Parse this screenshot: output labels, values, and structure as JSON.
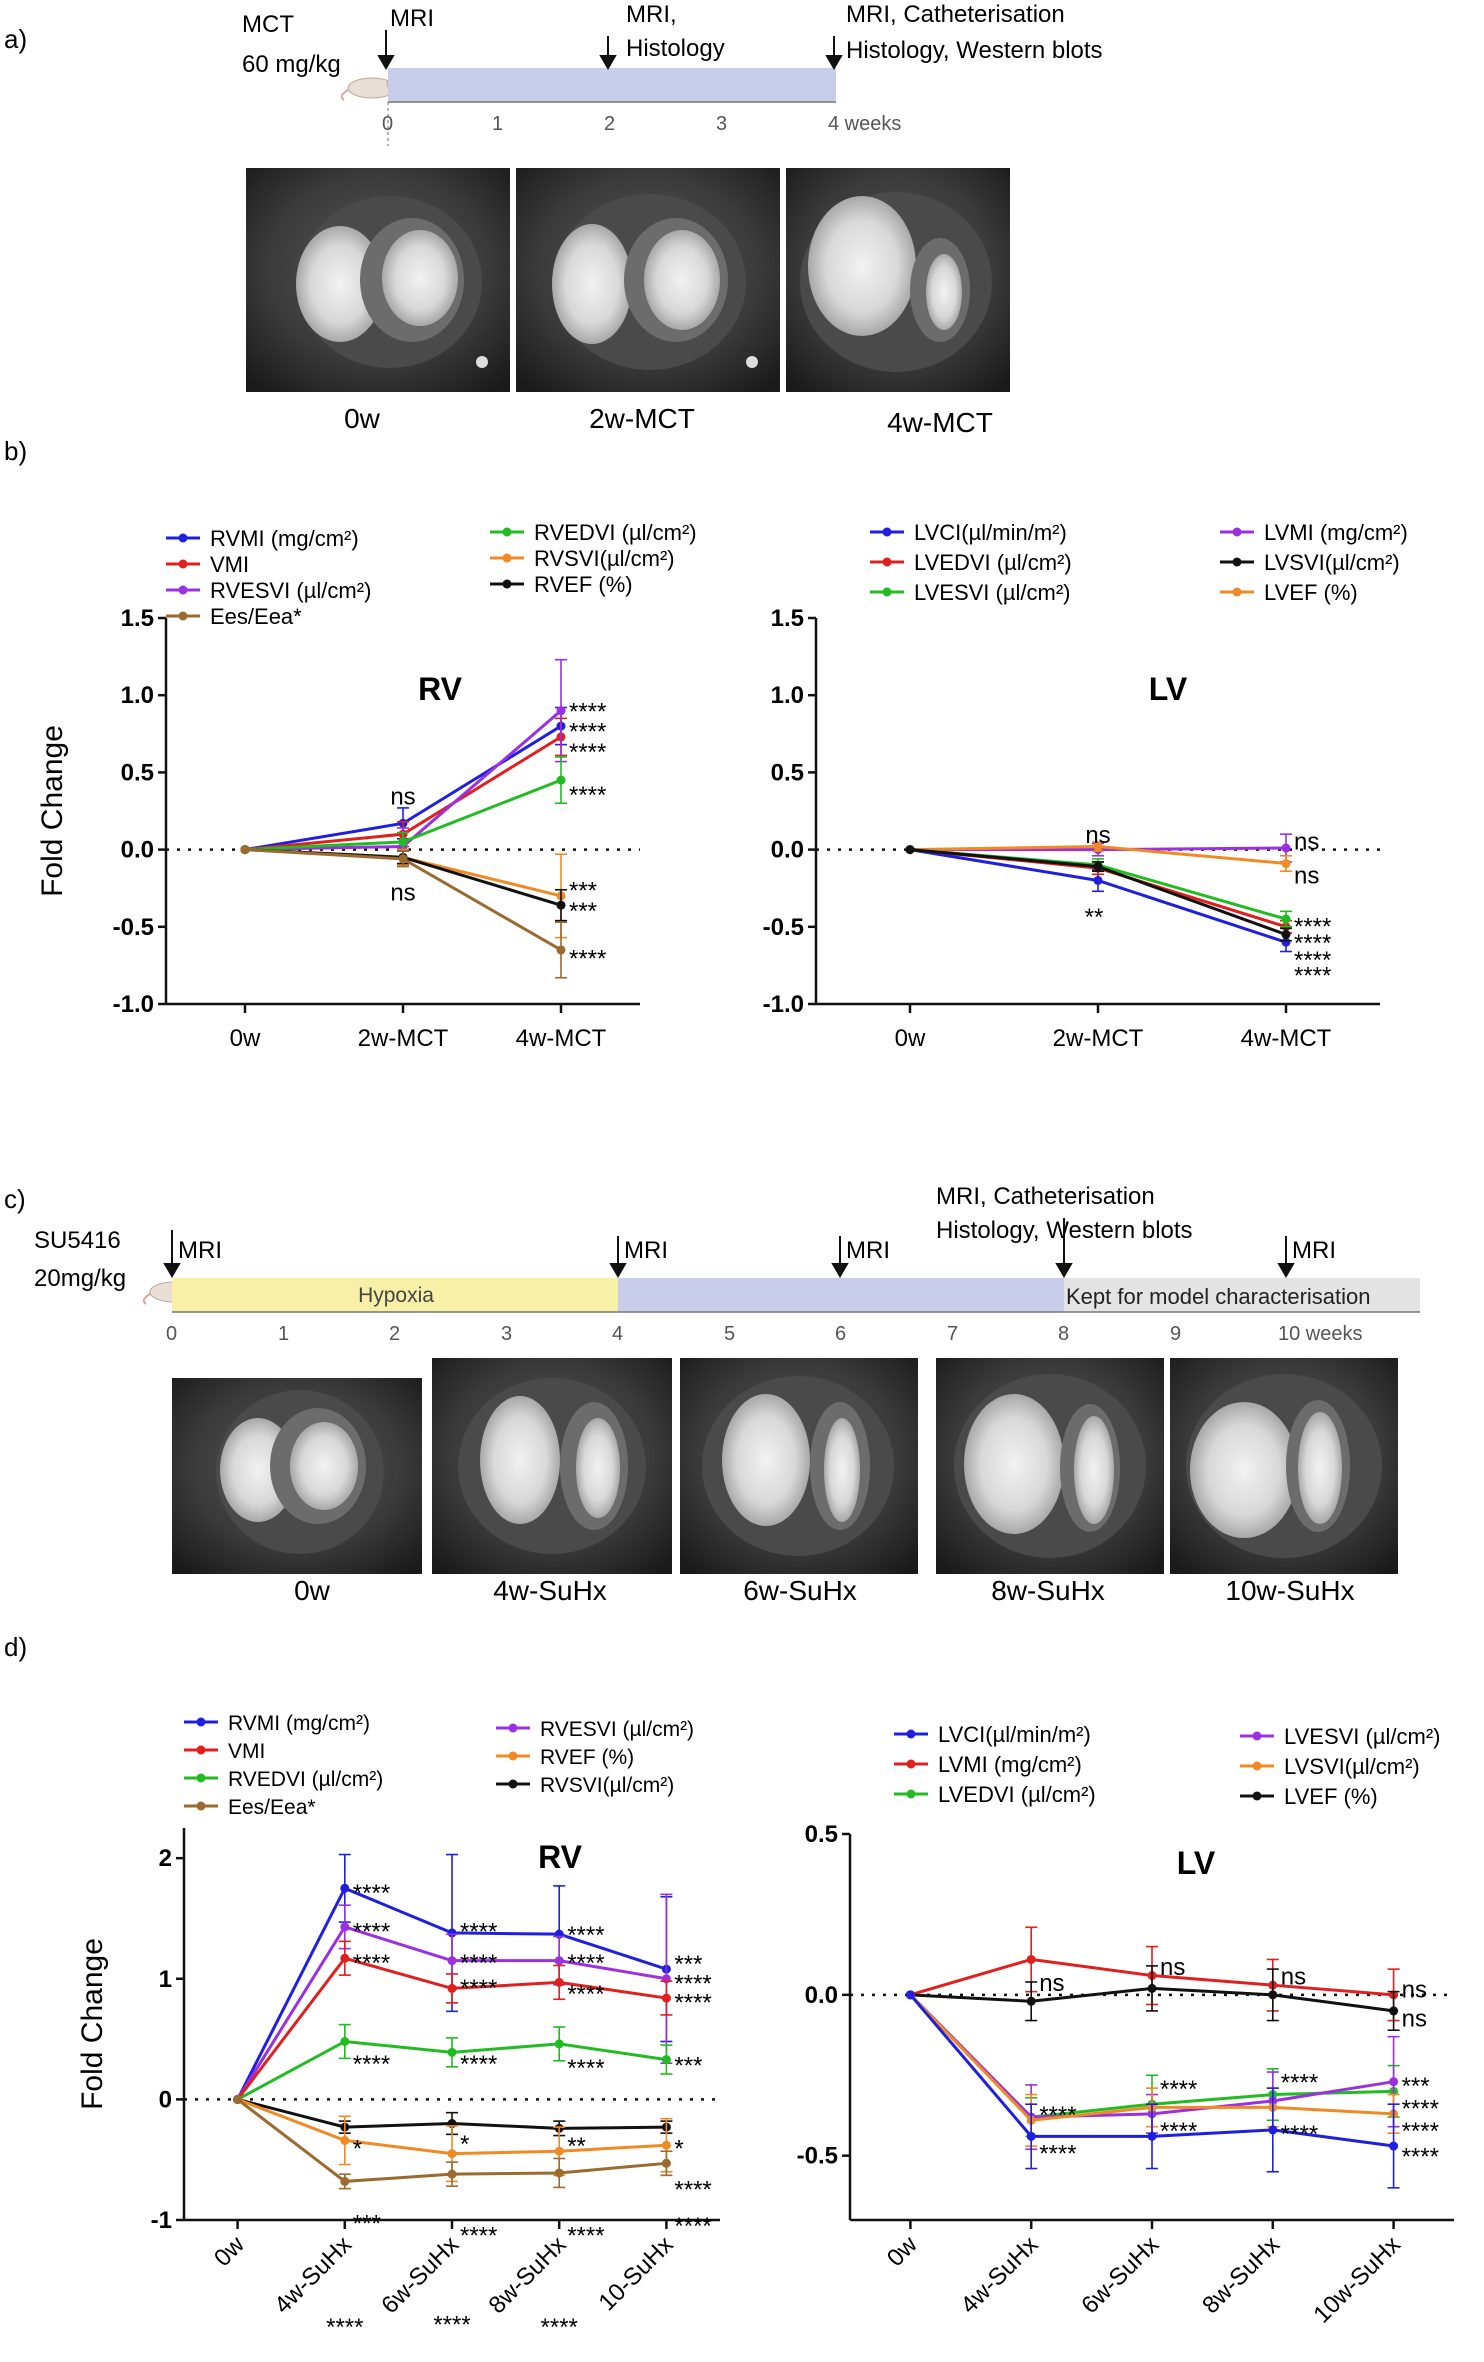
{
  "colors": {
    "blue": "#1f1fe0",
    "red": "#e0201e",
    "purple": "#9b30e0",
    "brown": "#9a6a2e",
    "green": "#22bb22",
    "orange": "#f08a24",
    "black": "#111111",
    "timeline_blue": "#c7cdeb",
    "timeline_yellow": "#f7f0a6",
    "timeline_grey": "#e4e4e4"
  },
  "panels": {
    "a": {
      "label": "a)",
      "drug": "MCT",
      "dose": "60 mg/kg",
      "events": [
        "MRI",
        "MRI,",
        "Histology",
        "MRI, Catheterisation",
        "Histology, Western blots"
      ],
      "ticks": [
        "0",
        "1",
        "2",
        "3",
        "4 weeks"
      ],
      "images": [
        "0w",
        "2w-MCT",
        "4w-MCT"
      ]
    },
    "b": {
      "label": "b)"
    },
    "c": {
      "label": "c)",
      "drug": "SU5416",
      "dose": "20mg/kg",
      "events": [
        "MRI",
        "MRI",
        "MRI",
        "MRI, Catheterisation",
        "Histology, Western blots",
        "MRI"
      ],
      "phases": [
        "Hypoxia",
        "Kept for model characterisation"
      ],
      "ticks": [
        "0",
        "1",
        "2",
        "3",
        "4",
        "5",
        "6",
        "7",
        "8",
        "9",
        "10 weeks"
      ],
      "images": [
        "0w",
        "4w-SuHx",
        "6w-SuHx",
        "8w-SuHx",
        "10w-SuHx"
      ]
    },
    "d": {
      "label": "d)"
    }
  },
  "chart_data": [
    {
      "id": "b-rv",
      "type": "line",
      "title": "RV",
      "ylabel": "Fold Change",
      "xlabel": "",
      "ylim": [
        -1.0,
        1.5
      ],
      "yticks": [
        1.5,
        1.0,
        0.5,
        0.0,
        -0.5,
        -1.0
      ],
      "ytick_labels": [
        "1.5",
        "1.0",
        "0.5",
        "0.0",
        "-0.5",
        "-1.0"
      ],
      "categories": [
        "0w",
        "2w-MCT",
        "4w-MCT"
      ],
      "legend": [
        {
          "label": "RVMI (mg/cm²)",
          "color": "blue"
        },
        {
          "label": "VMI",
          "color": "red"
        },
        {
          "label": "RVESVI (µl/cm²)",
          "color": "purple"
        },
        {
          "label": "Ees/Eea*",
          "color": "brown"
        },
        {
          "label": "RVEDVI (µl/cm²)",
          "color": "green"
        },
        {
          "label": "RVSVI(µl/cm²)",
          "color": "orange"
        },
        {
          "label": "RVEF (%)",
          "color": "black"
        }
      ],
      "series": [
        {
          "name": "RVMI (mg/cm²)",
          "color": "blue",
          "values": [
            0,
            0.17,
            0.8
          ],
          "err": [
            0,
            0.1,
            0.12
          ]
        },
        {
          "name": "VMI",
          "color": "red",
          "values": [
            0,
            0.1,
            0.73
          ],
          "err": [
            0,
            0.08,
            0.12
          ]
        },
        {
          "name": "RVESVI (µl/cm²)",
          "color": "purple",
          "values": [
            0,
            0.02,
            0.9
          ],
          "err": [
            0,
            0.12,
            0.33
          ]
        },
        {
          "name": "RVEDVI (µl/cm²)",
          "color": "green",
          "values": [
            0,
            0.05,
            0.45
          ],
          "err": [
            0,
            0.06,
            0.15
          ]
        },
        {
          "name": "RVSVI(µl/cm²)",
          "color": "orange",
          "values": [
            0,
            -0.05,
            -0.3
          ],
          "err": [
            0,
            0.05,
            0.27
          ]
        },
        {
          "name": "RVEF (%)",
          "color": "black",
          "values": [
            0,
            -0.05,
            -0.36
          ],
          "err": [
            0,
            0.04,
            0.1
          ]
        },
        {
          "name": "Ees/Eea*",
          "color": "brown",
          "values": [
            0,
            -0.06,
            -0.65
          ],
          "err": [
            0,
            0.05,
            0.18
          ]
        }
      ],
      "annotations": [
        {
          "text": "ns",
          "x": 1,
          "y": 0.35,
          "align": "middle"
        },
        {
          "text": "ns",
          "x": 1,
          "y": -0.27,
          "align": "middle"
        },
        {
          "text": "****",
          "x": 2,
          "y": 0.9,
          "align": "start"
        },
        {
          "text": "****",
          "x": 2,
          "y": 0.77,
          "align": "start"
        },
        {
          "text": "****",
          "x": 2,
          "y": 0.64,
          "align": "start"
        },
        {
          "text": "****",
          "x": 2,
          "y": 0.36,
          "align": "start"
        },
        {
          "text": "***",
          "x": 2,
          "y": -0.26,
          "align": "start"
        },
        {
          "text": "***",
          "x": 2,
          "y": -0.39,
          "align": "start"
        },
        {
          "text": "****",
          "x": 2,
          "y": -0.7,
          "align": "start"
        }
      ]
    },
    {
      "id": "b-lv",
      "type": "line",
      "title": "LV",
      "ylabel": "",
      "xlabel": "",
      "ylim": [
        -1.0,
        1.5
      ],
      "yticks": [
        1.5,
        1.0,
        0.5,
        0.0,
        -0.5,
        -1.0
      ],
      "ytick_labels": [
        "1.5",
        "1.0",
        "0.5",
        "0.0",
        "-0.5",
        "-1.0"
      ],
      "categories": [
        "0w",
        "2w-MCT",
        "4w-MCT"
      ],
      "legend": [
        {
          "label": "LVCI(µl/min/m²)",
          "color": "blue"
        },
        {
          "label": "LVEDVI (µl/cm²)",
          "color": "red"
        },
        {
          "label": "LVESVI (µl/cm²)",
          "color": "green"
        },
        {
          "label": "LVMI (mg/cm²)",
          "color": "purple"
        },
        {
          "label": "LVSVI(µl/cm²)",
          "color": "black"
        },
        {
          "label": "LVEF (%)",
          "color": "orange"
        }
      ],
      "series": [
        {
          "name": "LVMI (mg/cm²)",
          "color": "purple",
          "values": [
            0,
            0.0,
            0.01
          ],
          "err": [
            0,
            0.04,
            0.09
          ]
        },
        {
          "name": "LVEF (%)",
          "color": "orange",
          "values": [
            0,
            0.02,
            -0.09
          ],
          "err": [
            0,
            0.03,
            0.05
          ]
        },
        {
          "name": "LVCI(µl/min/m²)",
          "color": "blue",
          "values": [
            0,
            -0.2,
            -0.6
          ],
          "err": [
            0,
            0.07,
            0.06
          ]
        },
        {
          "name": "LVEDVI (µl/cm²)",
          "color": "red",
          "values": [
            0,
            -0.12,
            -0.5
          ],
          "err": [
            0,
            0.04,
            0.04
          ]
        },
        {
          "name": "LVESVI (µl/cm²)",
          "color": "green",
          "values": [
            0,
            -0.1,
            -0.45
          ],
          "err": [
            0,
            0.04,
            0.05
          ]
        },
        {
          "name": "LVSVI(µl/cm²)",
          "color": "black",
          "values": [
            0,
            -0.11,
            -0.55
          ],
          "err": [
            0,
            0.03,
            0.04
          ]
        }
      ],
      "annotations": [
        {
          "text": "ns",
          "x": 1,
          "y": 0.1,
          "align": "middle"
        },
        {
          "text": "**",
          "x": 1,
          "y": -0.43,
          "align": "end"
        },
        {
          "text": "ns",
          "x": 2,
          "y": 0.06,
          "align": "start"
        },
        {
          "text": "ns",
          "x": 2,
          "y": -0.16,
          "align": "start"
        },
        {
          "text": "****",
          "x": 2,
          "y": -0.49,
          "align": "start"
        },
        {
          "text": "****",
          "x": 2,
          "y": -0.6,
          "align": "start"
        },
        {
          "text": "****",
          "x": 2,
          "y": -0.71,
          "align": "start"
        },
        {
          "text": "****",
          "x": 2,
          "y": -0.81,
          "align": "start"
        }
      ]
    },
    {
      "id": "d-rv",
      "type": "line",
      "title": "RV",
      "ylabel": "Fold Change",
      "xlabel": "",
      "ylim": [
        -1,
        2.25
      ],
      "yticks": [
        2,
        1,
        0,
        -1
      ],
      "ytick_labels": [
        "2",
        "1",
        "0",
        "-1"
      ],
      "categories": [
        "0w",
        "4w-SuHx",
        "6w-SuHx",
        "8w-SuHx",
        "10-SuHx"
      ],
      "legend": [
        {
          "label": "RVMI (mg/cm²)",
          "color": "blue"
        },
        {
          "label": "VMI",
          "color": "red"
        },
        {
          "label": "RVEDVI (µl/cm²)",
          "color": "green"
        },
        {
          "label": "Ees/Eea*",
          "color": "brown"
        },
        {
          "label": "RVESVI (µl/cm²)",
          "color": "purple"
        },
        {
          "label": "RVEF (%)",
          "color": "orange"
        },
        {
          "label": "RVSVI(µl/cm²)",
          "color": "black"
        }
      ],
      "series": [
        {
          "name": "RVMI (mg/cm²)",
          "color": "blue",
          "values": [
            0,
            1.75,
            1.38,
            1.37,
            1.08
          ],
          "err": [
            0,
            0.28,
            0.65,
            0.4,
            0.6
          ]
        },
        {
          "name": "RVESVI (µl/cm²)",
          "color": "purple",
          "values": [
            0,
            1.43,
            1.15,
            1.15,
            1.0
          ],
          "err": [
            0,
            0.18,
            0.22,
            0.2,
            0.7
          ]
        },
        {
          "name": "VMI",
          "color": "red",
          "values": [
            0,
            1.17,
            0.92,
            0.97,
            0.84
          ],
          "err": [
            0,
            0.14,
            0.12,
            0.14,
            0.14
          ]
        },
        {
          "name": "RVEDVI (µl/cm²)",
          "color": "green",
          "values": [
            0,
            0.48,
            0.39,
            0.46,
            0.33
          ],
          "err": [
            0,
            0.14,
            0.12,
            0.14,
            0.12
          ]
        },
        {
          "name": "RVSVI(µl/cm²)",
          "color": "black",
          "values": [
            0,
            -0.23,
            -0.2,
            -0.24,
            -0.23
          ],
          "err": [
            0,
            0.05,
            0.09,
            0.06,
            0.05
          ]
        },
        {
          "name": "RVEF (%)",
          "color": "orange",
          "values": [
            0,
            -0.34,
            -0.45,
            -0.43,
            -0.38
          ],
          "err": [
            0,
            0.2,
            0.23,
            0.2,
            0.22
          ]
        },
        {
          "name": "Ees/Eea*",
          "color": "brown",
          "values": [
            0,
            -0.68,
            -0.62,
            -0.61,
            -0.53
          ],
          "err": [
            0,
            0.06,
            0.1,
            0.12,
            0.1
          ]
        }
      ],
      "annotations": [
        {
          "text": "****",
          "x": 1,
          "y": 1.72,
          "align": "start"
        },
        {
          "text": "****",
          "x": 1,
          "y": 1.4,
          "align": "start"
        },
        {
          "text": "****",
          "x": 1,
          "y": 1.14,
          "align": "start"
        },
        {
          "text": "****",
          "x": 1,
          "y": 0.3,
          "align": "start"
        },
        {
          "text": "*",
          "x": 1,
          "y": -0.4,
          "align": "start"
        },
        {
          "text": "***",
          "x": 1,
          "y": -1.02,
          "align": "start"
        },
        {
          "text": "****",
          "x": 1,
          "y": -1.88,
          "align": "middle"
        },
        {
          "text": "****",
          "x": 2,
          "y": 1.4,
          "align": "start"
        },
        {
          "text": "****",
          "x": 2,
          "y": 1.14,
          "align": "start"
        },
        {
          "text": "****",
          "x": 2,
          "y": 0.93,
          "align": "start"
        },
        {
          "text": "****",
          "x": 2,
          "y": 0.3,
          "align": "start"
        },
        {
          "text": "*",
          "x": 2,
          "y": -0.36,
          "align": "start"
        },
        {
          "text": "****",
          "x": 2,
          "y": -1.12,
          "align": "start"
        },
        {
          "text": "****",
          "x": 2,
          "y": -1.86,
          "align": "middle"
        },
        {
          "text": "****",
          "x": 3,
          "y": 1.37,
          "align": "start"
        },
        {
          "text": "****",
          "x": 3,
          "y": 1.14,
          "align": "start"
        },
        {
          "text": "****",
          "x": 3,
          "y": 0.88,
          "align": "start"
        },
        {
          "text": "****",
          "x": 3,
          "y": 0.27,
          "align": "start"
        },
        {
          "text": "**",
          "x": 3,
          "y": -0.38,
          "align": "start"
        },
        {
          "text": "****",
          "x": 3,
          "y": -1.12,
          "align": "start"
        },
        {
          "text": "****",
          "x": 3,
          "y": -1.88,
          "align": "middle"
        },
        {
          "text": "***",
          "x": 4,
          "y": 1.13,
          "align": "start"
        },
        {
          "text": "****",
          "x": 4,
          "y": 0.97,
          "align": "start"
        },
        {
          "text": "****",
          "x": 4,
          "y": 0.81,
          "align": "start"
        },
        {
          "text": "***",
          "x": 4,
          "y": 0.29,
          "align": "start"
        },
        {
          "text": "*",
          "x": 4,
          "y": -0.4,
          "align": "start"
        },
        {
          "text": "****",
          "x": 4,
          "y": -0.74,
          "align": "start"
        },
        {
          "text": "****",
          "x": 4,
          "y": -1.04,
          "align": "start"
        }
      ]
    },
    {
      "id": "d-lv",
      "type": "line",
      "title": "LV",
      "ylabel": "",
      "xlabel": "",
      "ylim": [
        -0.7,
        0.5
      ],
      "yticks": [
        0.5,
        0.0,
        -0.5
      ],
      "ytick_labels": [
        "0.5",
        "0.0",
        "-0.5"
      ],
      "categories": [
        "0w",
        "4w-SuHx",
        "6w-SuHx",
        "8w-SuHx",
        "10w-SuHx"
      ],
      "legend": [
        {
          "label": "LVCI(µl/min/m²)",
          "color": "blue"
        },
        {
          "label": "LVMI (mg/cm²)",
          "color": "red"
        },
        {
          "label": "LVEDVI (µl/cm²)",
          "color": "green"
        },
        {
          "label": "LVESVI (µl/cm²)",
          "color": "purple"
        },
        {
          "label": "LVSVI(µl/cm²)",
          "color": "orange"
        },
        {
          "label": "LVEF (%)",
          "color": "black"
        }
      ],
      "series": [
        {
          "name": "LVMI (mg/cm²)",
          "color": "red",
          "values": [
            0,
            0.11,
            0.06,
            0.03,
            0.0
          ],
          "err": [
            0,
            0.1,
            0.09,
            0.08,
            0.08
          ]
        },
        {
          "name": "LVEF (%)",
          "color": "black",
          "values": [
            0,
            -0.02,
            0.02,
            0.0,
            -0.05
          ],
          "err": [
            0,
            0.06,
            0.07,
            0.08,
            0.06
          ]
        },
        {
          "name": "LVEDVI (µl/cm²)",
          "color": "green",
          "values": [
            0,
            -0.38,
            -0.34,
            -0.31,
            -0.3
          ],
          "err": [
            0,
            0.06,
            0.09,
            0.08,
            0.08
          ]
        },
        {
          "name": "LVESVI (µl/cm²)",
          "color": "purple",
          "values": [
            0,
            -0.38,
            -0.37,
            -0.33,
            -0.27
          ],
          "err": [
            0,
            0.1,
            0.06,
            0.09,
            0.14
          ]
        },
        {
          "name": "LVSVI(µl/cm²)",
          "color": "orange",
          "values": [
            0,
            -0.39,
            -0.35,
            -0.35,
            -0.37
          ],
          "err": [
            0,
            0.08,
            0.06,
            0.06,
            0.06
          ]
        },
        {
          "name": "LVCI(µl/min/m²)",
          "color": "blue",
          "values": [
            0,
            -0.44,
            -0.44,
            -0.42,
            -0.47
          ],
          "err": [
            0,
            0.1,
            0.1,
            0.13,
            0.13
          ]
        }
      ],
      "annotations": [
        {
          "text": "ns",
          "x": 1,
          "y": 0.04,
          "align": "start"
        },
        {
          "text": "****",
          "x": 1,
          "y": -0.37,
          "align": "start"
        },
        {
          "text": "****",
          "x": 1,
          "y": -0.49,
          "align": "start"
        },
        {
          "text": "ns",
          "x": 2,
          "y": 0.09,
          "align": "start"
        },
        {
          "text": "****",
          "x": 2,
          "y": -0.29,
          "align": "start"
        },
        {
          "text": "****",
          "x": 2,
          "y": -0.42,
          "align": "start"
        },
        {
          "text": "ns",
          "x": 3,
          "y": 0.06,
          "align": "start"
        },
        {
          "text": "****",
          "x": 3,
          "y": -0.27,
          "align": "start"
        },
        {
          "text": "****",
          "x": 3,
          "y": -0.43,
          "align": "start"
        },
        {
          "text": "ns",
          "x": 4,
          "y": 0.02,
          "align": "start"
        },
        {
          "text": "ns",
          "x": 4,
          "y": -0.07,
          "align": "start"
        },
        {
          "text": "***",
          "x": 4,
          "y": -0.28,
          "align": "start"
        },
        {
          "text": "****",
          "x": 4,
          "y": -0.35,
          "align": "start"
        },
        {
          "text": "****",
          "x": 4,
          "y": -0.42,
          "align": "start"
        },
        {
          "text": "****",
          "x": 4,
          "y": -0.5,
          "align": "start"
        }
      ]
    }
  ]
}
